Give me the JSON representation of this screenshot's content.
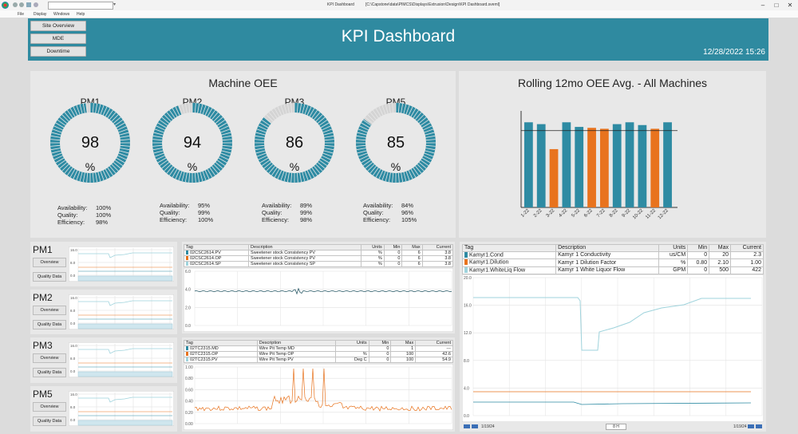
{
  "window": {
    "title": "KPI Dashboard",
    "path": "[C:\\Capstone\\data\\PIMCS\\Displays\\Extrusion\\Design\\KPI Dashboard.sveml]",
    "menu": [
      "File",
      "Display",
      "Windows",
      "Help"
    ]
  },
  "header": {
    "title": "KPI Dashboard",
    "datetime": "12/28/2022 15:26",
    "nav": [
      "Site Overview",
      "MDE",
      "Downtime"
    ],
    "color": "#2f8aa0"
  },
  "oee": {
    "title": "Machine OEE",
    "machines": [
      {
        "name": "PM1",
        "value": "98",
        "unit": "%",
        "fill": 0.98,
        "availability": "100%",
        "quality": "100%",
        "efficiency": "98%"
      },
      {
        "name": "PM2",
        "value": "94",
        "unit": "%",
        "fill": 0.94,
        "availability": "95%",
        "quality": "99%",
        "efficiency": "100%"
      },
      {
        "name": "PM3",
        "value": "86",
        "unit": "%",
        "fill": 0.86,
        "availability": "89%",
        "quality": "99%",
        "efficiency": "98%"
      },
      {
        "name": "PM5",
        "value": "85",
        "unit": "%",
        "fill": 0.85,
        "availability": "84%",
        "quality": "96%",
        "efficiency": "105%"
      }
    ],
    "labels": {
      "availability": "Availability:",
      "quality": "Quality:",
      "efficiency": "Efficiency:"
    },
    "gauge_color": "#2e8ba3",
    "track_color": "#d4d4d4"
  },
  "chart_data": {
    "type": "bar",
    "title": "Rolling 12mo OEE Avg. - All Machines",
    "categories": [
      "1-22",
      "2-22",
      "3-22",
      "4-22",
      "5-22",
      "6-22",
      "7-22",
      "8-22",
      "9-22",
      "10-22",
      "11-22",
      "12-22"
    ],
    "values": [
      92,
      90,
      63,
      92,
      87,
      86,
      85,
      90,
      92,
      89,
      85,
      92
    ],
    "colors": [
      "#2e8ba3",
      "#2e8ba3",
      "#e8731e",
      "#2e8ba3",
      "#2e8ba3",
      "#e8731e",
      "#e8731e",
      "#2e8ba3",
      "#2e8ba3",
      "#2e8ba3",
      "#e8731e",
      "#2e8ba3"
    ],
    "target": 83,
    "ylim": [
      0,
      100
    ],
    "xlabel": "",
    "ylabel": ""
  },
  "pm_panels": [
    {
      "name": "PM1",
      "buttons": [
        "Overview",
        "Quality Data"
      ],
      "y_ticks": [
        "16.0",
        "8.0",
        "0.0"
      ]
    },
    {
      "name": "PM2",
      "buttons": [
        "Overview",
        "Quality Data"
      ],
      "y_ticks": [
        "16.0",
        "8.0",
        "0.0"
      ]
    },
    {
      "name": "PM3",
      "buttons": [
        "Overview",
        "Quality Data"
      ],
      "y_ticks": [
        "16.0",
        "8.0",
        "0.0"
      ]
    },
    {
      "name": "PM5",
      "buttons": [
        "Overview",
        "Quality Data"
      ],
      "y_ticks": [
        "16.0",
        "8.0",
        "0.0"
      ]
    }
  ],
  "consistency_trend": {
    "headers": [
      "Tag",
      "Description",
      "Units",
      "Min",
      "Max",
      "Current"
    ],
    "rows": [
      {
        "color": "#2e8ba3",
        "tag": "02CSC2614.PV",
        "desc": "Sweetener stock Consistency PV",
        "units": "%",
        "min": "0",
        "max": "6",
        "current": "3.8"
      },
      {
        "color": "#e8731e",
        "tag": "02CSC2614.OP",
        "desc": "Sweetener stock Consistency PV",
        "units": "%",
        "min": "0",
        "max": "6",
        "current": "3.8"
      },
      {
        "color": "#9fd3dc",
        "tag": "02CSC2614.SP",
        "desc": "Sweetener stock Consistency SP",
        "units": "%",
        "min": "0",
        "max": "6",
        "current": "3.8"
      }
    ],
    "y_ticks": [
      "6.0",
      "4.0",
      "2.0",
      "0.0"
    ]
  },
  "wirepit_trend": {
    "headers": [
      "Tag",
      "Description",
      "Units",
      "Min",
      "Max",
      "Current"
    ],
    "rows": [
      {
        "color": "#2e8ba3",
        "tag": "02TC2315.MD",
        "desc": "Wire Pit Temp MD",
        "units": "",
        "min": "0",
        "max": "1",
        "current": "---"
      },
      {
        "color": "#e8731e",
        "tag": "02TC2315.OP",
        "desc": "Wire Pit Temp OP",
        "units": "%",
        "min": "0",
        "max": "100",
        "current": "42.6"
      },
      {
        "color": "#9fd3dc",
        "tag": "02TC2315.PV",
        "desc": "Wire Pit Temp PV",
        "units": "Deg C",
        "min": "0",
        "max": "100",
        "current": "54.9"
      }
    ],
    "y_ticks": [
      "1.00",
      "0.80",
      "0.60",
      "0.40",
      "0.20",
      "0.00"
    ]
  },
  "kamyr_trend": {
    "headers": [
      "Tag",
      "Description",
      "Units",
      "Min",
      "Max",
      "Current"
    ],
    "rows": [
      {
        "color": "#2e8ba3",
        "tag": "Kamyr1.Cond",
        "desc": "Kamyr 1 Conductivity",
        "units": "us/CM",
        "min": "0",
        "max": "20",
        "current": "2.3"
      },
      {
        "color": "#e8731e",
        "tag": "Kamyr1.Dilution",
        "desc": "Kamyr 1 Dilution Factor",
        "units": "%",
        "min": "0.80",
        "max": "2.10",
        "current": "1.00"
      },
      {
        "color": "#9fd3dc",
        "tag": "Kamyr1.WhiteLiq Flow",
        "desc": "Kamyr 1 White Liquor Flow",
        "units": "GPM",
        "min": "0",
        "max": "500",
        "current": "422"
      }
    ],
    "y_ticks": [
      "20.0",
      "16.0",
      "12.0",
      "8.0",
      "4.0",
      "0.0"
    ],
    "footer_left": "1/19/24",
    "footer_mid": "8 H",
    "footer_right": "1/19/24"
  }
}
